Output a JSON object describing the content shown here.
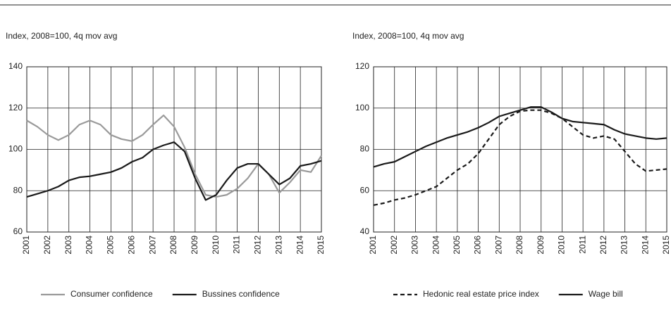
{
  "chart_data": [
    {
      "type": "line",
      "ylabel": "Index, 2008=100, 4q mov avg",
      "x": [
        2001,
        2001.5,
        2002,
        2002.5,
        2003,
        2003.5,
        2004,
        2004.5,
        2005,
        2005.5,
        2006,
        2006.5,
        2007,
        2007.5,
        2008,
        2008.5,
        2009,
        2009.5,
        2010,
        2010.5,
        2011,
        2011.5,
        2012,
        2012.5,
        2013,
        2013.5,
        2014,
        2014.5,
        2015
      ],
      "series": [
        {
          "name": "Consumer confidence",
          "color": "#9a9a9a",
          "dashed": false,
          "values": [
            114,
            111,
            107,
            104.5,
            107,
            112,
            114,
            112,
            107,
            105,
            104,
            107,
            112,
            116.5,
            111,
            101,
            88,
            78,
            77,
            78,
            81,
            86,
            93,
            88,
            79,
            84,
            90,
            89,
            97
          ]
        },
        {
          "name": "Bussines confidence",
          "color": "#1a1a1a",
          "dashed": false,
          "values": [
            77,
            78.5,
            80,
            82,
            85,
            86.5,
            87,
            88,
            89,
            91,
            94,
            96,
            100,
            102,
            103.5,
            99,
            86,
            75.5,
            78,
            85,
            91,
            93,
            93,
            88,
            83,
            86,
            92,
            93,
            94.5
          ]
        }
      ],
      "xlim": [
        2001,
        2015
      ],
      "xticks": [
        2001,
        2002,
        2003,
        2004,
        2005,
        2006,
        2007,
        2008,
        2009,
        2010,
        2011,
        2012,
        2013,
        2014,
        2015
      ],
      "ylim": [
        60,
        140
      ],
      "yticks": [
        60,
        80,
        100,
        120,
        140
      ],
      "grid": true
    },
    {
      "type": "line",
      "ylabel": "Index, 2008=100, 4q mov avg",
      "x": [
        2001,
        2001.5,
        2002,
        2002.5,
        2003,
        2003.5,
        2004,
        2004.5,
        2005,
        2005.5,
        2006,
        2006.5,
        2007,
        2007.5,
        2008,
        2008.5,
        2009,
        2009.5,
        2010,
        2010.5,
        2011,
        2011.5,
        2012,
        2012.5,
        2013,
        2013.5,
        2014,
        2014.5,
        2015
      ],
      "series": [
        {
          "name": "Hedonic real estate price index",
          "color": "#1a1a1a",
          "dashed": true,
          "values": [
            53,
            54,
            55.5,
            56.5,
            58,
            60,
            62,
            66,
            70,
            73,
            78,
            85,
            92,
            96,
            98.5,
            99,
            99,
            97.5,
            95,
            91,
            87,
            85.5,
            86.5,
            85,
            79,
            73,
            69.5,
            70,
            70.5
          ]
        },
        {
          "name": "Wage bill",
          "color": "#1a1a1a",
          "dashed": false,
          "values": [
            71.5,
            73,
            74,
            76.5,
            79,
            81.5,
            83.5,
            85.5,
            87,
            88.5,
            90.5,
            93,
            96,
            97.5,
            99,
            100.5,
            100.5,
            98,
            95,
            93.5,
            93,
            92.5,
            92,
            89.5,
            87.5,
            86.5,
            85.5,
            85,
            85.5
          ]
        }
      ],
      "xlim": [
        2001,
        2015
      ],
      "xticks": [
        2001,
        2002,
        2003,
        2004,
        2005,
        2006,
        2007,
        2008,
        2009,
        2010,
        2011,
        2012,
        2013,
        2014,
        2015
      ],
      "ylim": [
        40,
        120
      ],
      "yticks": [
        40,
        60,
        80,
        100,
        120
      ],
      "grid": true
    }
  ]
}
